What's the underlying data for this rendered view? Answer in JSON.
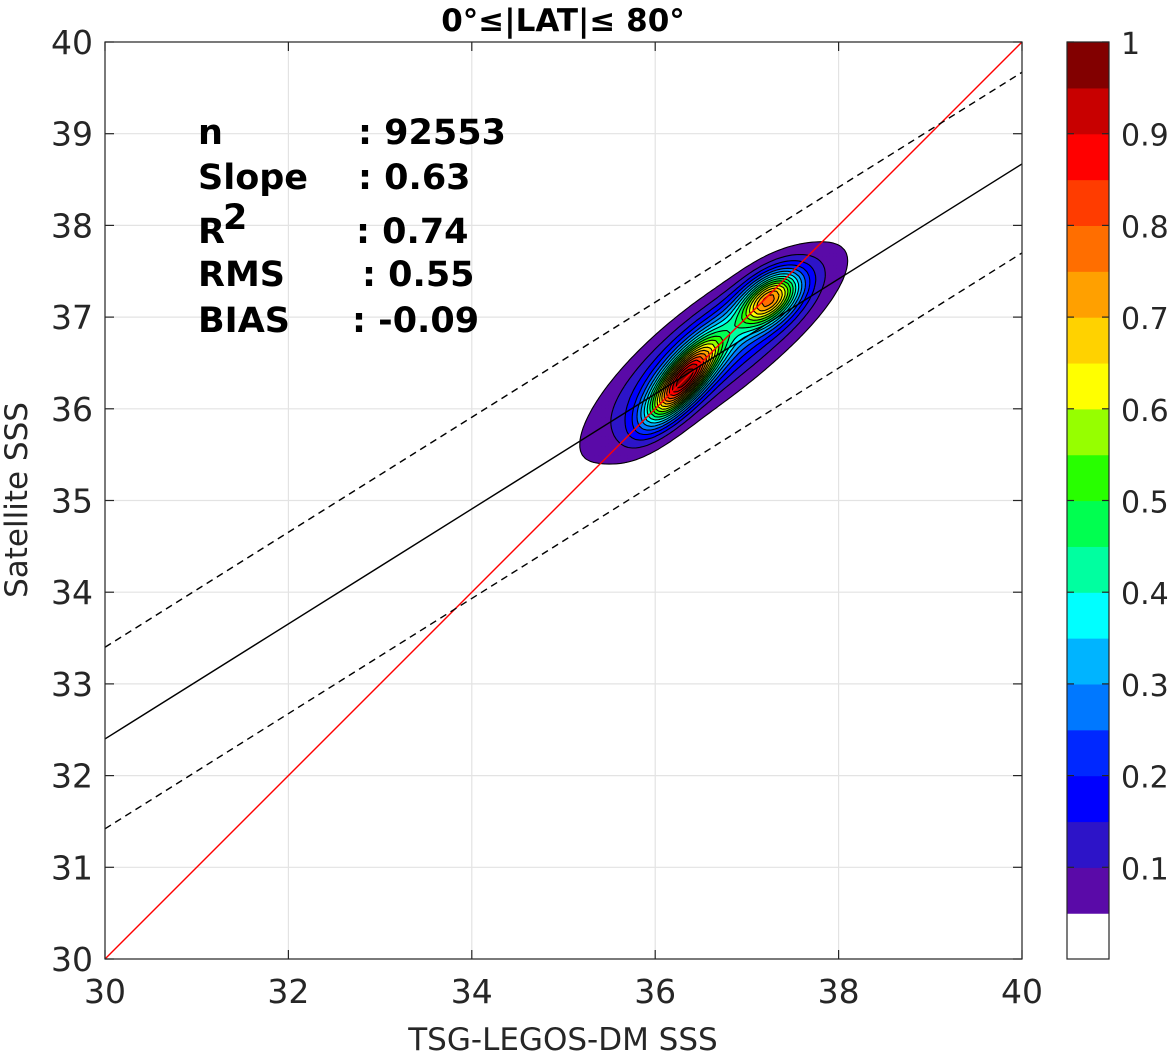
{
  "chart_data": {
    "type": "heatmap",
    "title": "0°≤|LAT|≤ 80°",
    "xlabel": "TSG-LEGOS-DM SSS",
    "ylabel": "Satellite SSS",
    "xlim": [
      30,
      40
    ],
    "ylim": [
      30,
      40
    ],
    "xticks": [
      "30",
      "32",
      "34",
      "36",
      "38",
      "40"
    ],
    "yticks": [
      "30",
      "31",
      "32",
      "33",
      "34",
      "35",
      "36",
      "37",
      "38",
      "39",
      "40"
    ],
    "grid": true,
    "stats": [
      {
        "label": "n",
        "value": ": 92553"
      },
      {
        "label": "Slope",
        "value": ": 0.63"
      },
      {
        "label": "R",
        "sup": "2",
        "value": ": 0.74"
      },
      {
        "label": "RMS",
        "value": ": 0.55"
      },
      {
        "label": "BIAS",
        "value": ": -0.09"
      }
    ],
    "lines": [
      {
        "role": "one-to-one",
        "color": "#ff0000",
        "style": "solid",
        "points": [
          [
            30,
            30
          ],
          [
            40,
            40
          ]
        ]
      },
      {
        "role": "regression",
        "color": "#000000",
        "style": "solid",
        "points": [
          [
            30,
            32.4
          ],
          [
            40,
            38.67
          ]
        ]
      },
      {
        "role": "upper-bound",
        "color": "#000000",
        "style": "dashed",
        "points": [
          [
            30,
            33.4
          ],
          [
            40,
            39.67
          ]
        ]
      },
      {
        "role": "lower-bound",
        "color": "#000000",
        "style": "dashed",
        "points": [
          [
            30,
            31.42
          ],
          [
            40,
            37.7
          ]
        ]
      }
    ],
    "density": {
      "peaks": [
        {
          "x": 36.3,
          "y": 36.3,
          "sx": 0.26,
          "sy": 0.3,
          "rho": 0.78,
          "amp": 1.0
        },
        {
          "x": 37.25,
          "y": 37.2,
          "sx": 0.22,
          "sy": 0.2,
          "rho": 0.5,
          "amp": 0.75
        },
        {
          "x": 36.7,
          "y": 36.75,
          "sx": 0.7,
          "sy": 0.55,
          "rho": 0.82,
          "amp": 0.34
        },
        {
          "x": 36.4,
          "y": 36.3,
          "sx": 1.0,
          "sy": 0.8,
          "rho": 0.88,
          "amp": 0.09
        }
      ],
      "levels": [
        0.05,
        0.1,
        0.15,
        0.2,
        0.25,
        0.3,
        0.35,
        0.4,
        0.45,
        0.5,
        0.55,
        0.6,
        0.65,
        0.7,
        0.75,
        0.8,
        0.85,
        0.9,
        0.95
      ]
    },
    "colorbar": {
      "range": [
        0,
        1
      ],
      "ticks": [
        "0.1",
        "0.2",
        "0.3",
        "0.4",
        "0.5",
        "0.6",
        "0.7",
        "0.8",
        "0.9",
        "1"
      ],
      "tick_values": [
        0.1,
        0.2,
        0.3,
        0.4,
        0.5,
        0.6,
        0.7,
        0.8,
        0.9,
        1.0
      ],
      "colors": [
        "#ffffff",
        "#5a0aa8",
        "#2d14c8",
        "#0000ff",
        "#0028ff",
        "#0078ff",
        "#00b4ff",
        "#00ffff",
        "#00ffa0",
        "#00ff50",
        "#28ff00",
        "#96ff00",
        "#ffff00",
        "#ffd200",
        "#ffa000",
        "#ff6e00",
        "#ff3c00",
        "#ff0000",
        "#c80000",
        "#820000"
      ]
    }
  }
}
